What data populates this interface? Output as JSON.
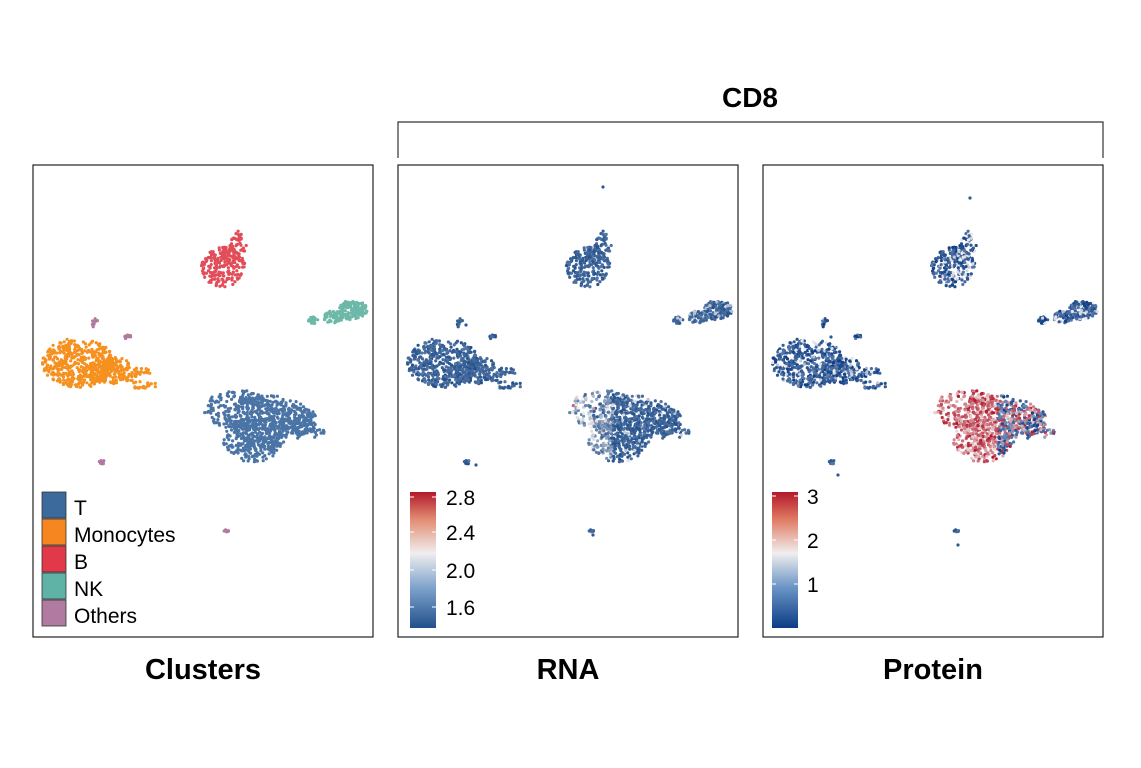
{
  "figure": {
    "group_title": "CD8",
    "panels": [
      {
        "title": "Clusters"
      },
      {
        "title": "RNA"
      },
      {
        "title": "Protein"
      }
    ]
  },
  "chart_data": [
    {
      "type": "scatter",
      "title": "Clusters",
      "legend_position": "bottom-left",
      "legend": [
        {
          "label": "T",
          "color": "#3d6a9c"
        },
        {
          "label": "Monocytes",
          "color": "#f6861f"
        },
        {
          "label": "B",
          "color": "#e2394a"
        },
        {
          "label": "NK",
          "color": "#5fb3a6"
        },
        {
          "label": "Others",
          "color": "#b07aa1"
        }
      ],
      "cluster_colors": {
        "T": "#4a74a6",
        "Monocytes": "#f6901f",
        "B": "#e14d58",
        "NK": "#6db8a9",
        "Others": "#b07aa1"
      }
    },
    {
      "type": "scatter",
      "title": "RNA",
      "feature": "CD8",
      "colorbar": {
        "ticks": [
          "2.8",
          "2.4",
          "2.0",
          "1.6"
        ],
        "min": 1.4,
        "max": 2.9,
        "low_color": "#22508c",
        "mid_color": "#f0eeee",
        "high_color": "#b2182b"
      }
    },
    {
      "type": "scatter",
      "title": "Protein",
      "feature": "CD8",
      "colorbar": {
        "ticks": [
          "3",
          "2",
          "1"
        ],
        "min": 0,
        "max": 3.2,
        "low_color": "#0b3c85",
        "mid_color": "#f0eeee",
        "high_color": "#b2182b"
      }
    }
  ]
}
